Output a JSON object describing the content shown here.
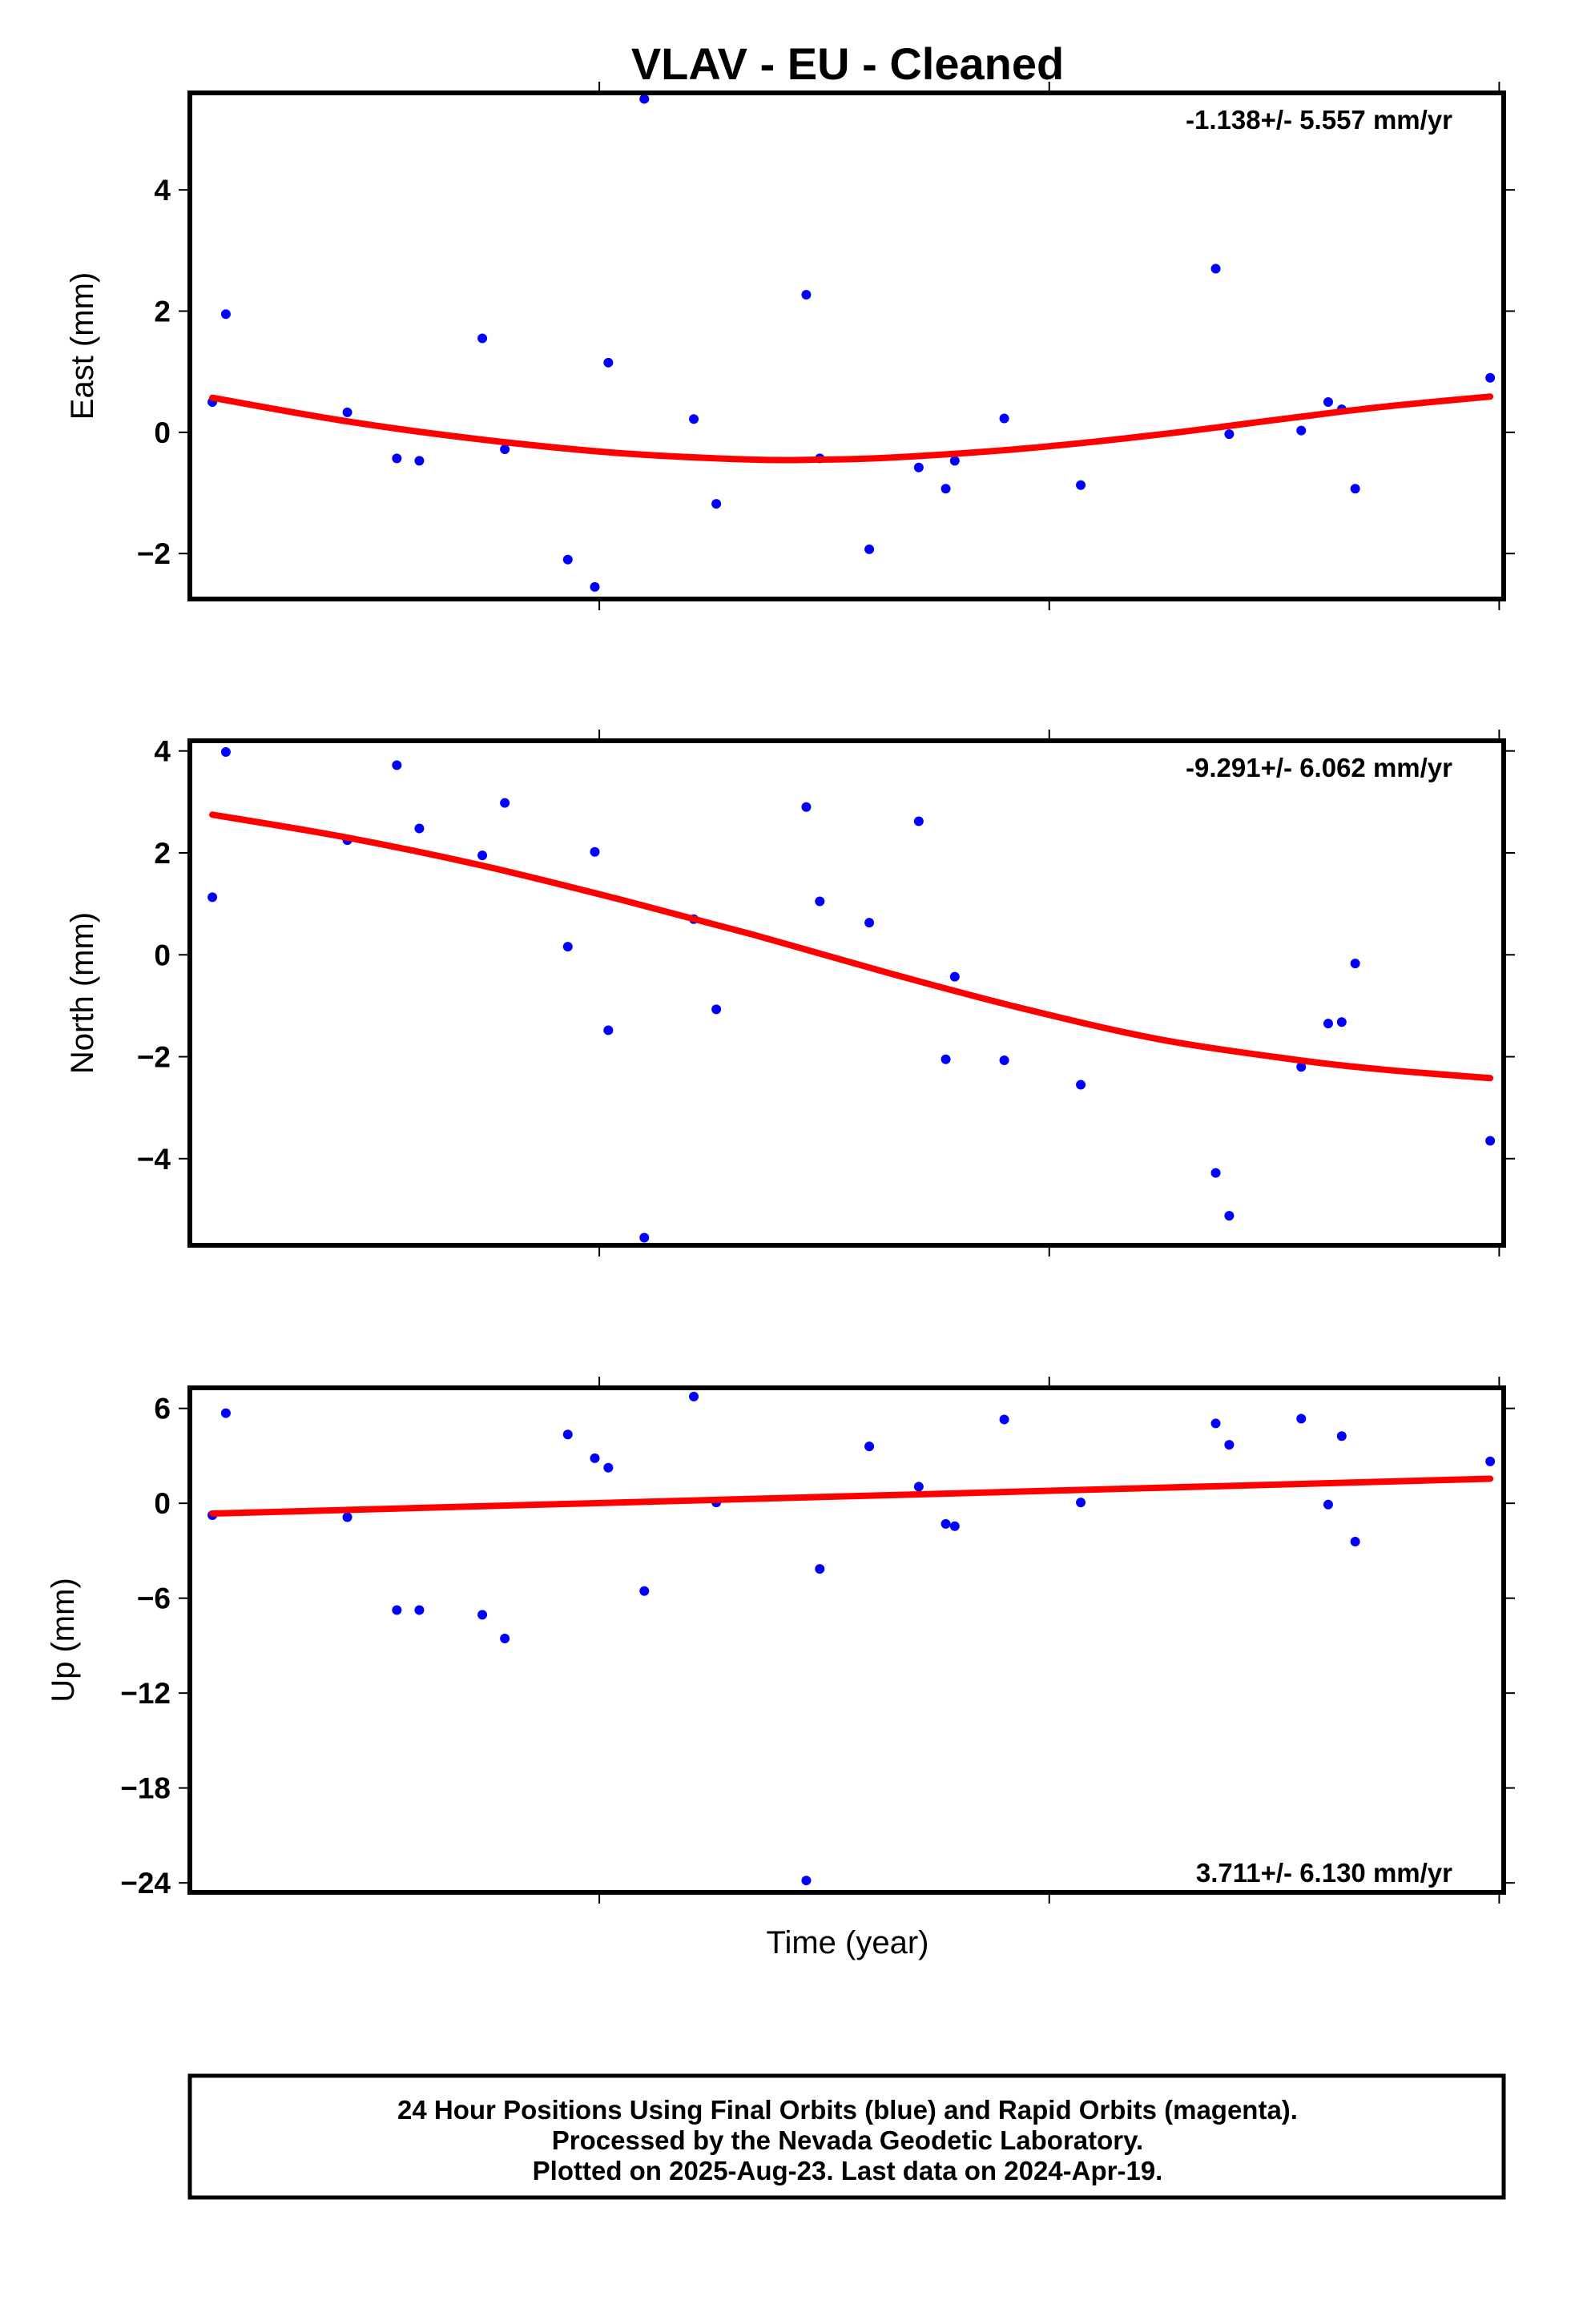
{
  "chart_data": {
    "title": "VLAV  - EU - Cleaned",
    "xlabel": "Time (year)",
    "type": "scatter",
    "colors": {
      "points": "#0000ff",
      "fit": "#ff0000",
      "axes": "#000000"
    },
    "x_range": [
      -0.05,
      2.87
    ],
    "x_major_ticks": [
      0.86,
      1.86,
      2.86
    ],
    "panels": [
      {
        "id": "east",
        "ylabel": "East (mm)",
        "ylim": [
          -2.75,
          5.6
        ],
        "yticks": [
          4,
          2,
          0,
          -2
        ],
        "ytick_labels": [
          "4",
          "2",
          "0",
          "−2"
        ],
        "rate_text": "-1.138+/- 5.557 mm/yr",
        "rate_position": "top-right",
        "points": [
          {
            "x": 0.0,
            "y": 0.5
          },
          {
            "x": 0.03,
            "y": 1.95
          },
          {
            "x": 0.3,
            "y": 0.33
          },
          {
            "x": 0.41,
            "y": -0.43
          },
          {
            "x": 0.46,
            "y": -0.47
          },
          {
            "x": 0.6,
            "y": 1.55
          },
          {
            "x": 0.65,
            "y": -0.28
          },
          {
            "x": 0.79,
            "y": -2.1
          },
          {
            "x": 0.85,
            "y": -2.55
          },
          {
            "x": 0.88,
            "y": 1.15
          },
          {
            "x": 0.96,
            "y": 5.5
          },
          {
            "x": 1.07,
            "y": 0.22
          },
          {
            "x": 1.12,
            "y": -1.18
          },
          {
            "x": 1.32,
            "y": 2.27
          },
          {
            "x": 1.35,
            "y": -0.43
          },
          {
            "x": 1.46,
            "y": -1.93
          },
          {
            "x": 1.57,
            "y": -0.58
          },
          {
            "x": 1.63,
            "y": -0.93
          },
          {
            "x": 1.65,
            "y": -0.47
          },
          {
            "x": 1.76,
            "y": 0.23
          },
          {
            "x": 1.93,
            "y": -0.87
          },
          {
            "x": 2.23,
            "y": 2.7
          },
          {
            "x": 2.26,
            "y": -0.03
          },
          {
            "x": 2.42,
            "y": 0.03
          },
          {
            "x": 2.48,
            "y": 0.5
          },
          {
            "x": 2.51,
            "y": 0.38
          },
          {
            "x": 2.54,
            "y": -0.93
          },
          {
            "x": 2.84,
            "y": 0.9
          }
        ],
        "fit": {
          "x": [
            0.0,
            0.3,
            0.6,
            0.9,
            1.2,
            1.35,
            1.5,
            1.8,
            2.1,
            2.4,
            2.6,
            2.84
          ],
          "y": [
            0.57,
            0.18,
            -0.12,
            -0.34,
            -0.45,
            -0.45,
            -0.42,
            -0.27,
            -0.04,
            0.24,
            0.42,
            0.59
          ]
        }
      },
      {
        "id": "north",
        "ylabel": "North (mm)",
        "ylim": [
          -5.7,
          4.2
        ],
        "yticks": [
          4,
          2,
          0,
          -2,
          -4
        ],
        "ytick_labels": [
          "4",
          "2",
          "0",
          "−2",
          "−4"
        ],
        "rate_text": "-9.291+/- 6.062 mm/yr",
        "rate_position": "top-right",
        "points": [
          {
            "x": 0.0,
            "y": 1.13
          },
          {
            "x": 0.03,
            "y": 3.98
          },
          {
            "x": 0.3,
            "y": 2.25
          },
          {
            "x": 0.41,
            "y": 3.72
          },
          {
            "x": 0.46,
            "y": 2.48
          },
          {
            "x": 0.6,
            "y": 1.95
          },
          {
            "x": 0.65,
            "y": 2.98
          },
          {
            "x": 0.79,
            "y": 0.16
          },
          {
            "x": 0.85,
            "y": 2.02
          },
          {
            "x": 0.88,
            "y": -1.48
          },
          {
            "x": 0.96,
            "y": -5.55
          },
          {
            "x": 1.07,
            "y": 0.7
          },
          {
            "x": 1.12,
            "y": -1.07
          },
          {
            "x": 1.32,
            "y": 2.9
          },
          {
            "x": 1.35,
            "y": 1.05
          },
          {
            "x": 1.46,
            "y": 0.63
          },
          {
            "x": 1.57,
            "y": 2.62
          },
          {
            "x": 1.63,
            "y": -2.05
          },
          {
            "x": 1.65,
            "y": -0.43
          },
          {
            "x": 1.76,
            "y": -2.07
          },
          {
            "x": 1.93,
            "y": -2.55
          },
          {
            "x": 2.23,
            "y": -4.28
          },
          {
            "x": 2.26,
            "y": -5.12
          },
          {
            "x": 2.42,
            "y": -2.2
          },
          {
            "x": 2.48,
            "y": -1.35
          },
          {
            "x": 2.51,
            "y": -1.32
          },
          {
            "x": 2.54,
            "y": -0.17
          },
          {
            "x": 2.84,
            "y": -3.65
          }
        ],
        "fit": {
          "x": [
            0.0,
            0.3,
            0.6,
            0.9,
            1.2,
            1.5,
            1.8,
            2.1,
            2.4,
            2.6,
            2.84
          ],
          "y": [
            2.75,
            2.3,
            1.75,
            1.1,
            0.4,
            -0.35,
            -1.05,
            -1.65,
            -2.05,
            -2.25,
            -2.42
          ]
        }
      },
      {
        "id": "up",
        "ylabel": "Up (mm)",
        "ylim": [
          -24.6,
          7.3
        ],
        "yticks": [
          6,
          0,
          -6,
          -12,
          -18,
          -24
        ],
        "ytick_labels": [
          "6",
          "0",
          "−6",
          "−12",
          "−18",
          "−24"
        ],
        "rate_text": "3.711+/- 6.130 mm/yr",
        "rate_position": "bottom-right",
        "points": [
          {
            "x": 0.0,
            "y": -0.75
          },
          {
            "x": 0.03,
            "y": 5.7
          },
          {
            "x": 0.3,
            "y": -0.88
          },
          {
            "x": 0.41,
            "y": -6.75
          },
          {
            "x": 0.46,
            "y": -6.75
          },
          {
            "x": 0.6,
            "y": -7.05
          },
          {
            "x": 0.65,
            "y": -8.55
          },
          {
            "x": 0.79,
            "y": 4.35
          },
          {
            "x": 0.85,
            "y": 2.85
          },
          {
            "x": 0.88,
            "y": 2.25
          },
          {
            "x": 0.96,
            "y": -5.55
          },
          {
            "x": 1.07,
            "y": 6.75
          },
          {
            "x": 1.12,
            "y": 0.05
          },
          {
            "x": 1.32,
            "y": -23.85
          },
          {
            "x": 1.35,
            "y": -4.15
          },
          {
            "x": 1.46,
            "y": 3.6
          },
          {
            "x": 1.57,
            "y": 1.05
          },
          {
            "x": 1.63,
            "y": -1.3
          },
          {
            "x": 1.65,
            "y": -1.45
          },
          {
            "x": 1.76,
            "y": 5.3
          },
          {
            "x": 1.93,
            "y": 0.05
          },
          {
            "x": 2.23,
            "y": 5.05
          },
          {
            "x": 2.26,
            "y": 3.7
          },
          {
            "x": 2.42,
            "y": 5.35
          },
          {
            "x": 2.48,
            "y": -0.08
          },
          {
            "x": 2.51,
            "y": 4.25
          },
          {
            "x": 2.54,
            "y": -2.42
          },
          {
            "x": 2.84,
            "y": 2.65
          }
        ],
        "fit": {
          "x": [
            0.0,
            2.84
          ],
          "y": [
            -0.65,
            1.55
          ]
        }
      }
    ]
  },
  "footer": {
    "line1": "24 Hour Positions Using Final Orbits (blue) and Rapid Orbits (magenta).",
    "line2": "Processed by the Nevada Geodetic Laboratory.",
    "line3": "Plotted on 2025-Aug-23. Last data on 2024-Apr-19."
  }
}
